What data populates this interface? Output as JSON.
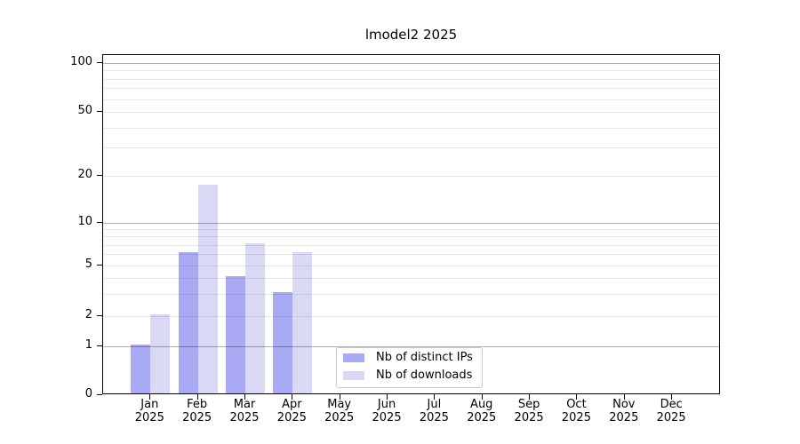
{
  "figure": {
    "background": "#ffffff"
  },
  "chart_data": {
    "type": "bar",
    "title": "lmodel2 2025",
    "categories": [
      "Jan",
      "Feb",
      "Mar",
      "Apr",
      "May",
      "Jun",
      "Jul",
      "Aug",
      "Sep",
      "Oct",
      "Nov",
      "Dec"
    ],
    "x_year_label": "2025",
    "series": [
      {
        "name": "Nb of distinct IPs",
        "color": "#a9a9f4",
        "values": [
          1,
          6,
          4,
          3,
          0,
          0,
          0,
          0,
          0,
          0,
          0,
          0
        ]
      },
      {
        "name": "Nb of downloads",
        "color": "#d9d9f6",
        "values": [
          2,
          17,
          7,
          6,
          0,
          0,
          0,
          0,
          0,
          0,
          0,
          0
        ]
      }
    ],
    "xlabel": "",
    "ylabel": "",
    "yaxis": {
      "scale": "symlog",
      "tick_values": [
        0,
        1,
        2,
        5,
        10,
        20,
        50,
        100
      ],
      "tick_labels": [
        "0",
        "1",
        "2",
        "5",
        "10",
        "20",
        "50",
        "100"
      ],
      "major_grid_values": [
        1,
        10,
        100
      ],
      "minor_grid_values": [
        2,
        3,
        4,
        5,
        6,
        7,
        8,
        9,
        20,
        30,
        40,
        50,
        60,
        70,
        80,
        90
      ],
      "ylim": [
        0,
        110
      ],
      "grid": true
    },
    "legend": {
      "position": "lower-center",
      "entries": [
        "Nb of distinct IPs",
        "Nb of downloads"
      ]
    }
  },
  "colors": {
    "major_grid": "rgba(0,0,0,0.31)",
    "minor_grid": "rgba(0,0,0,0.09)",
    "spine": "#000000",
    "legend_border": "#c9c9c9",
    "text": "#000000"
  }
}
